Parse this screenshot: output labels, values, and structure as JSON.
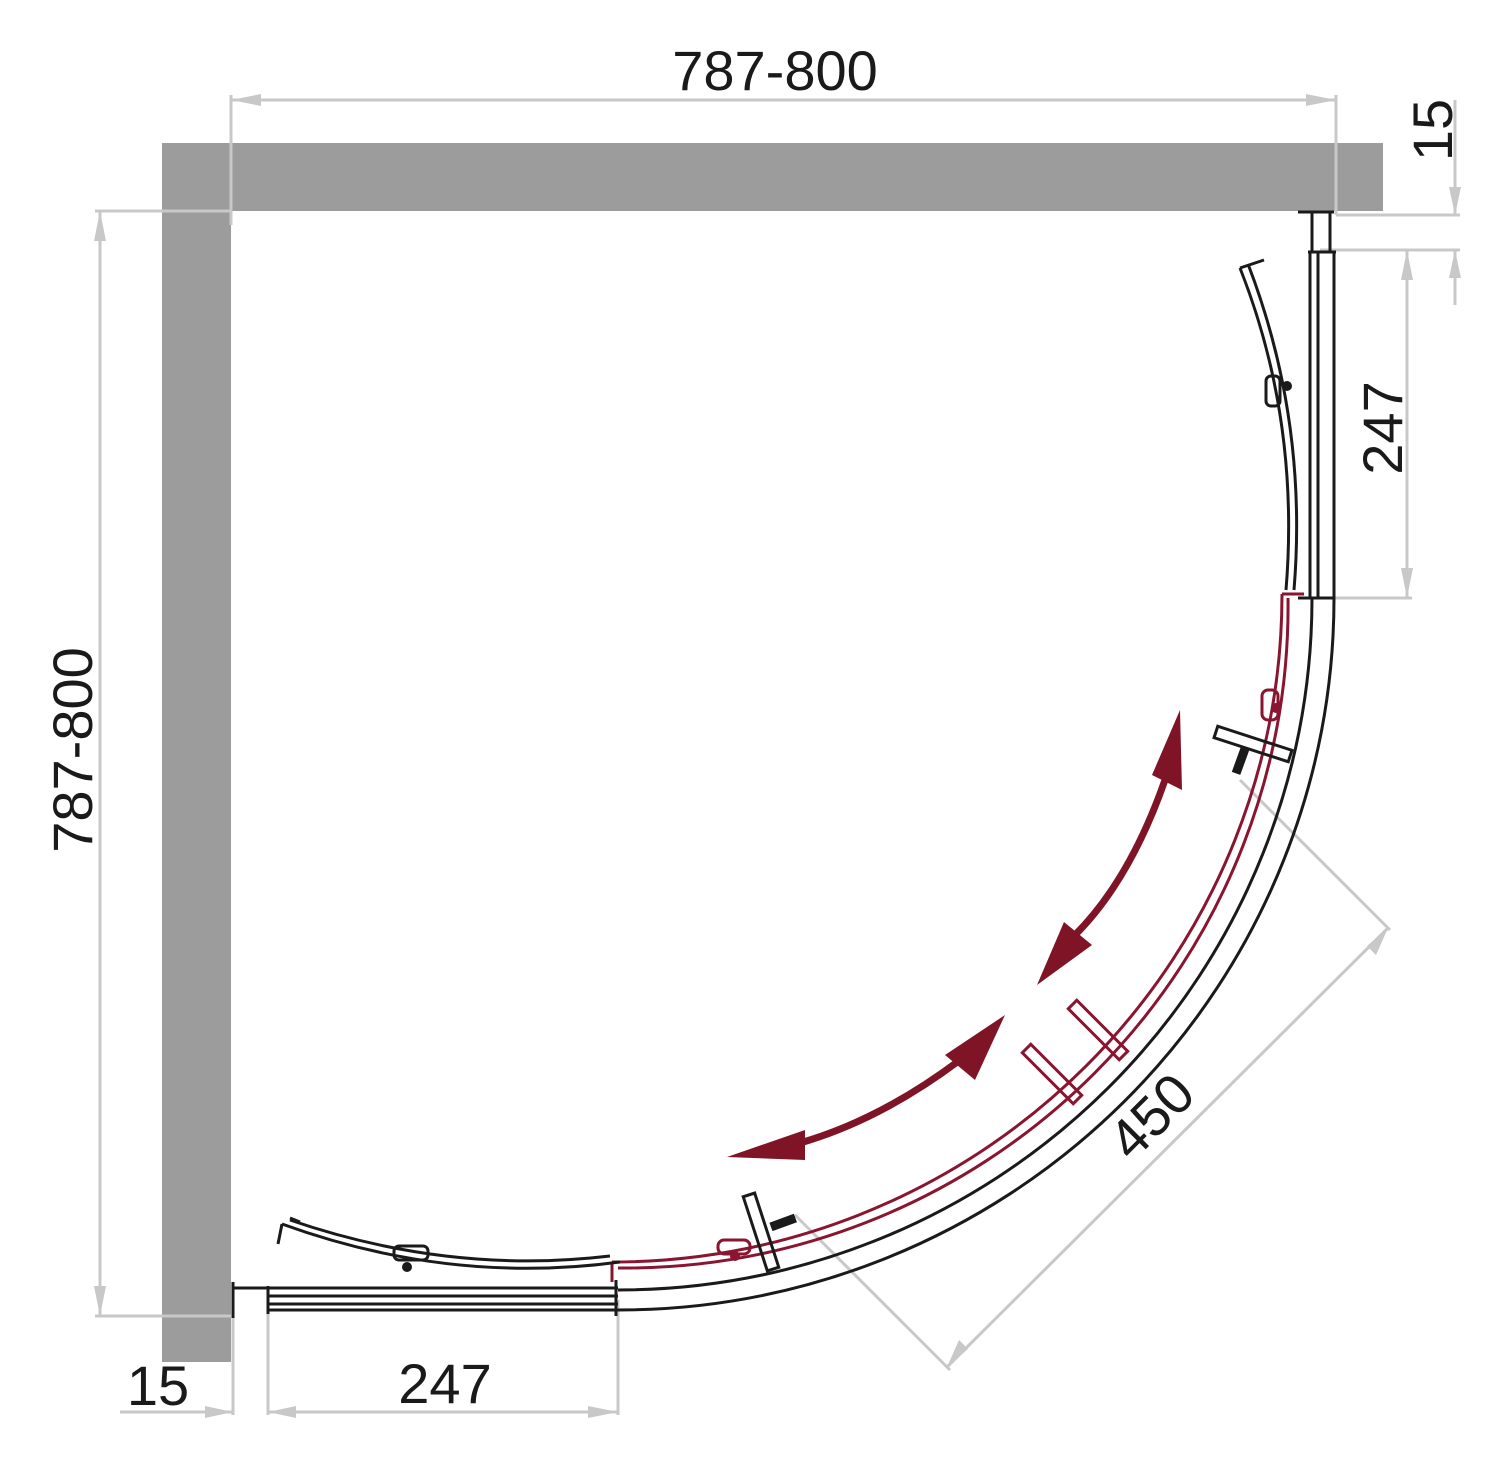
{
  "dimensions": {
    "top_width": "787-800",
    "left_height": "787-800",
    "top_right_offset": "15",
    "right_fixed_panel": "247",
    "bottom_left_offset": "15",
    "bottom_fixed_panel": "247",
    "door_opening": "450"
  },
  "colors": {
    "wall": "#9c9c9c",
    "dimension_line": "#c8c8c8",
    "door_highlight": "#8a1530",
    "outline": "#1a1a1a"
  }
}
